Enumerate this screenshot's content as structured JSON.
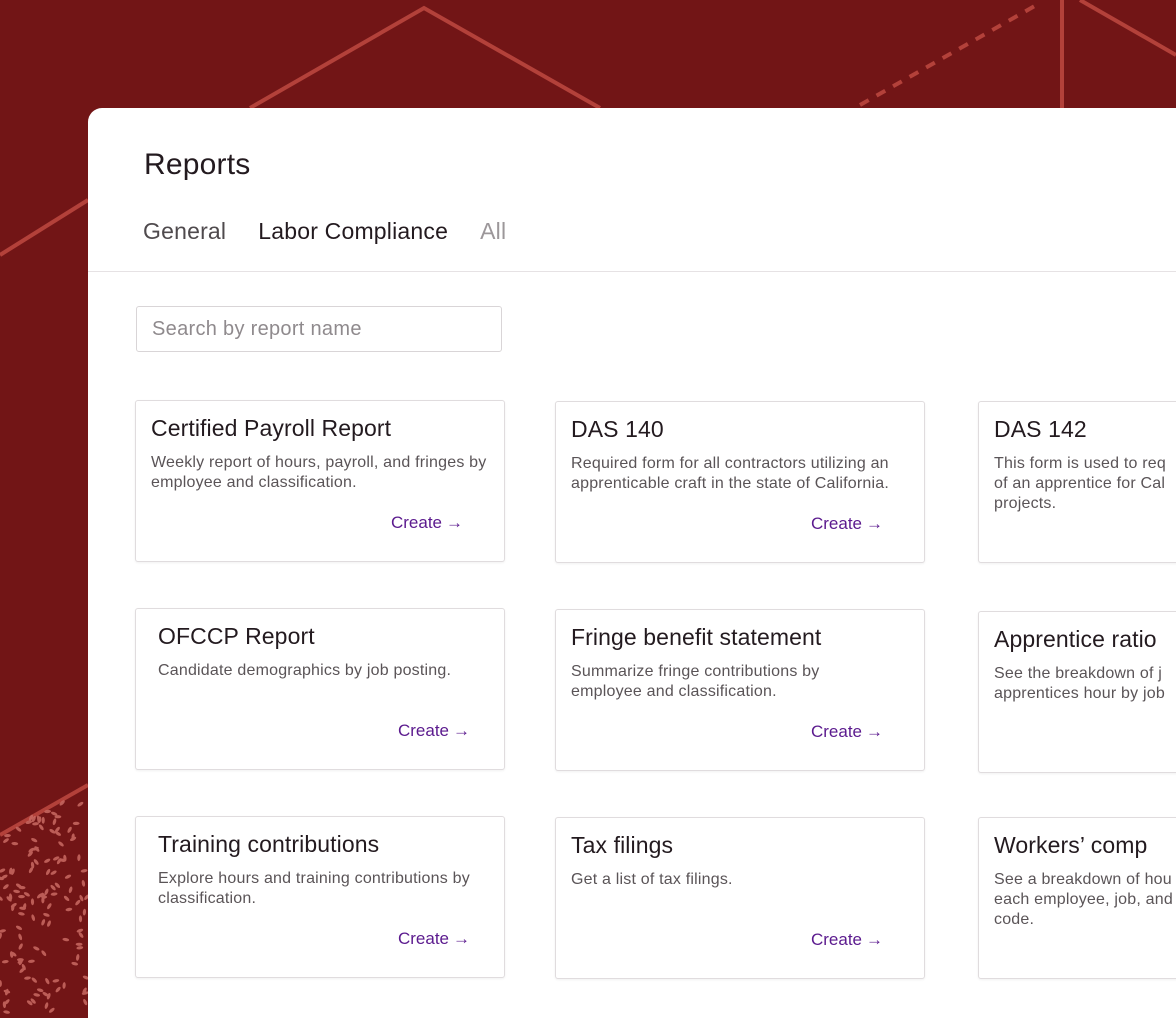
{
  "page": {
    "title": "Reports"
  },
  "tabs": [
    {
      "label": "General"
    },
    {
      "label": "Labor Compliance"
    },
    {
      "label": "All"
    }
  ],
  "search": {
    "placeholder": "Search by report name",
    "value": ""
  },
  "create_label": "Create",
  "create_arrow": "→",
  "cards": [
    {
      "title": "Certified Payroll Report",
      "description": "Weekly report of hours, payroll, and fringes by employee and classification."
    },
    {
      "title": "DAS 140",
      "description": "Required form for all contractors utilizing an apprenticable craft in the state of California."
    },
    {
      "title": "DAS 142",
      "description": "This form is used to req of an apprentice for Cal projects."
    },
    {
      "title": "OFCCP Report",
      "description": "Candidate demographics by job posting."
    },
    {
      "title": "Fringe benefit statement",
      "description": "Summarize fringe contributions by employee and classification."
    },
    {
      "title": "Apprentice ratio",
      "description": "See the breakdown of j apprentices hour by job"
    },
    {
      "title": "Training contributions",
      "description": "Explore hours and training contributions by classification."
    },
    {
      "title": "Tax filings",
      "description": "Get a list of tax filings."
    },
    {
      "title": "Workers’ comp",
      "description": "See a breakdown of hou each employee, job, and code."
    }
  ],
  "colors": {
    "background": "#721516",
    "accent_line": "#b3413a",
    "link": "#5b1a8e"
  }
}
